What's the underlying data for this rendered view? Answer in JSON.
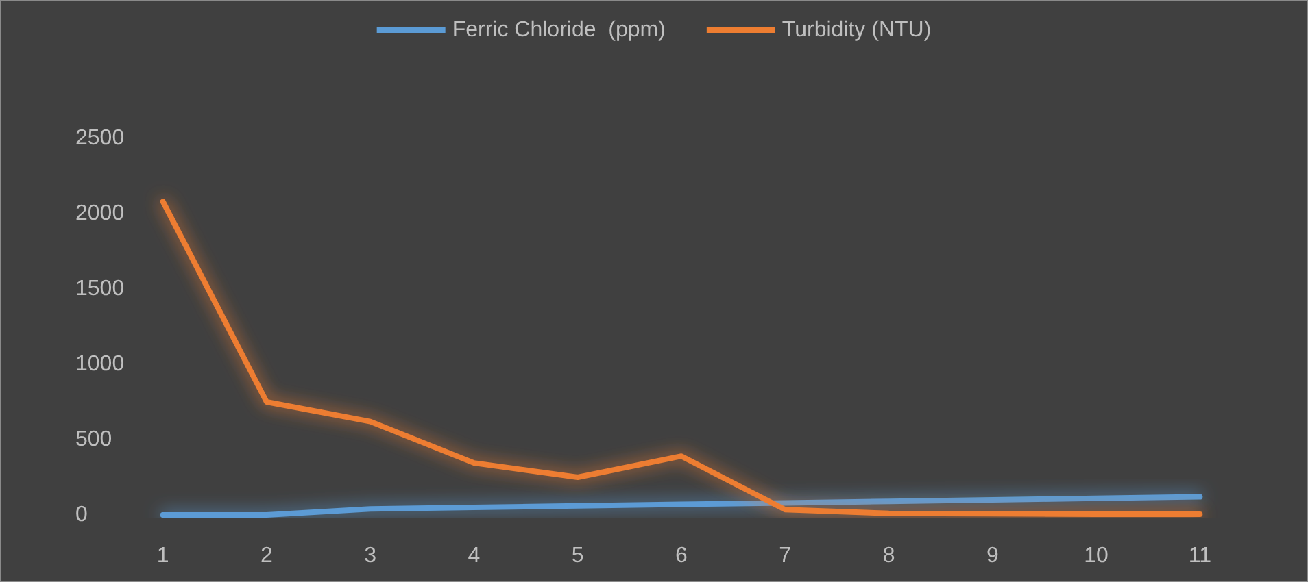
{
  "chart_data": {
    "type": "line",
    "categories": [
      "1",
      "2",
      "3",
      "4",
      "5",
      "6",
      "7",
      "8",
      "9",
      "10",
      "11"
    ],
    "series": [
      {
        "name": "Ferric Chloride  (ppm)",
        "color": "#5b9bd5",
        "values": [
          0,
          0,
          40,
          50,
          60,
          70,
          80,
          90,
          100,
          110,
          120
        ]
      },
      {
        "name": "Turbidity (NTU)",
        "color": "#ed7d31",
        "values": [
          2080,
          750,
          620,
          345,
          250,
          390,
          35,
          10,
          8,
          5,
          5
        ]
      }
    ],
    "ylim": [
      0,
      2500
    ],
    "yticks": [
      0,
      500,
      1000,
      1500,
      2000,
      2500
    ],
    "grid": false,
    "legend": "top",
    "marker": "none",
    "line_style": "solid"
  }
}
